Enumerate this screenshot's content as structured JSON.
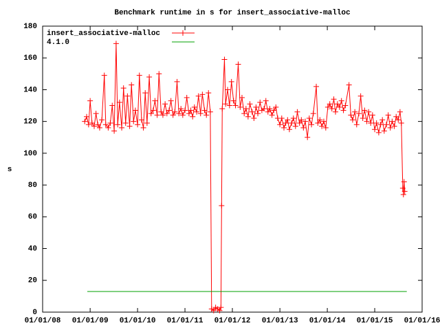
{
  "chart_data": {
    "type": "line",
    "title": "Benchmark runtime in s for insert_associative-malloc",
    "y_label": "s",
    "xlim": [
      "2008-01-01",
      "2016-01-01"
    ],
    "xticks": [
      {
        "value": "2008-01-01",
        "label": "01/01/08"
      },
      {
        "value": "2009-01-01",
        "label": "01/01/09"
      },
      {
        "value": "2010-01-01",
        "label": "01/01/10"
      },
      {
        "value": "2011-01-01",
        "label": "01/01/11"
      },
      {
        "value": "2012-01-01",
        "label": "01/01/12"
      },
      {
        "value": "2013-01-01",
        "label": "01/01/13"
      },
      {
        "value": "2014-01-01",
        "label": "01/01/14"
      },
      {
        "value": "2015-01-01",
        "label": "01/01/15"
      },
      {
        "value": "2016-01-01",
        "label": "01/01/16"
      }
    ],
    "ylim": [
      0,
      180
    ],
    "yticks": [
      0,
      20,
      40,
      60,
      80,
      100,
      120,
      140,
      160,
      180
    ],
    "legend": "top-left",
    "series": [
      {
        "name": "insert_associative-malloc",
        "color": "#ff0000",
        "style": "linespoints",
        "x": [
          "2008-11-20",
          "2008-12-05",
          "2008-12-20",
          "2009-01-01",
          "2009-01-15",
          "2009-02-01",
          "2009-02-15",
          "2009-03-01",
          "2009-03-15",
          "2009-04-01",
          "2009-04-20",
          "2009-05-01",
          "2009-05-20",
          "2009-06-05",
          "2009-06-20",
          "2009-07-05",
          "2009-07-20",
          "2009-08-01",
          "2009-08-15",
          "2009-09-01",
          "2009-09-15",
          "2009-10-01",
          "2009-10-15",
          "2009-11-01",
          "2009-11-15",
          "2009-12-01",
          "2009-12-15",
          "2010-01-01",
          "2010-01-15",
          "2010-02-01",
          "2010-02-15",
          "2010-03-01",
          "2010-03-15",
          "2010-04-01",
          "2010-04-15",
          "2010-05-01",
          "2010-05-15",
          "2010-06-01",
          "2010-06-15",
          "2010-07-01",
          "2010-07-15",
          "2010-08-01",
          "2010-08-15",
          "2010-09-01",
          "2010-09-15",
          "2010-10-01",
          "2010-10-15",
          "2010-11-01",
          "2010-11-15",
          "2010-12-01",
          "2010-12-15",
          "2011-01-01",
          "2011-01-15",
          "2011-02-01",
          "2011-02-15",
          "2011-03-01",
          "2011-03-15",
          "2011-04-01",
          "2011-04-15",
          "2011-05-01",
          "2011-05-15",
          "2011-06-01",
          "2011-06-15",
          "2011-07-01",
          "2011-07-15",
          "2011-07-25",
          "2011-08-10",
          "2011-08-25",
          "2011-09-10",
          "2011-09-25",
          "2011-10-05",
          "2011-10-10",
          "2011-10-15",
          "2011-11-01",
          "2011-11-10",
          "2011-11-25",
          "2011-12-10",
          "2011-12-25",
          "2012-01-10",
          "2012-01-25",
          "2012-02-15",
          "2012-03-01",
          "2012-03-15",
          "2012-04-01",
          "2012-04-15",
          "2012-05-01",
          "2012-05-15",
          "2012-06-01",
          "2012-06-15",
          "2012-07-01",
          "2012-07-15",
          "2012-08-01",
          "2012-08-15",
          "2012-09-01",
          "2012-09-15",
          "2012-10-01",
          "2012-10-15",
          "2012-11-01",
          "2012-11-15",
          "2012-12-01",
          "2012-12-15",
          "2013-01-01",
          "2013-01-15",
          "2013-02-01",
          "2013-02-15",
          "2013-03-01",
          "2013-03-15",
          "2013-04-01",
          "2013-04-15",
          "2013-05-01",
          "2013-05-15",
          "2013-06-01",
          "2013-06-15",
          "2013-07-01",
          "2013-07-15",
          "2013-08-01",
          "2013-08-15",
          "2013-09-01",
          "2013-09-15",
          "2013-10-08",
          "2013-10-20",
          "2013-11-05",
          "2013-11-20",
          "2013-12-05",
          "2013-12-20",
          "2014-01-05",
          "2014-01-20",
          "2014-02-05",
          "2014-02-20",
          "2014-03-05",
          "2014-03-20",
          "2014-04-05",
          "2014-04-20",
          "2014-05-05",
          "2014-05-20",
          "2014-06-17",
          "2014-07-01",
          "2014-07-15",
          "2014-08-01",
          "2014-08-15",
          "2014-09-01",
          "2014-09-15",
          "2014-10-01",
          "2014-10-15",
          "2014-11-01",
          "2014-11-15",
          "2014-12-01",
          "2014-12-15",
          "2015-01-01",
          "2015-01-15",
          "2015-02-01",
          "2015-02-15",
          "2015-03-01",
          "2015-03-15",
          "2015-04-01",
          "2015-04-15",
          "2015-05-01",
          "2015-05-15",
          "2015-06-01",
          "2015-06-15",
          "2015-07-01",
          "2015-07-15",
          "2015-07-25",
          "2015-08-05",
          "2015-08-10",
          "2015-08-15",
          "2015-08-20"
        ],
        "values": [
          120,
          123,
          118,
          133,
          119,
          117,
          125,
          118,
          116,
          121,
          149,
          118,
          116,
          119,
          130,
          114,
          169,
          118,
          132,
          116,
          141,
          119,
          136,
          117,
          143,
          120,
          127,
          118,
          149,
          121,
          116,
          138,
          119,
          148,
          125,
          127,
          133,
          124,
          150,
          126,
          124,
          131,
          125,
          127,
          133,
          124,
          126,
          145,
          125,
          128,
          124,
          127,
          135,
          125,
          127,
          123,
          129,
          126,
          136,
          125,
          137,
          127,
          124,
          138,
          126,
          2,
          1,
          3,
          2,
          1,
          3,
          67,
          128,
          159,
          131,
          140,
          130,
          145,
          133,
          130,
          156,
          129,
          135,
          125,
          128,
          123,
          131,
          126,
          122,
          129,
          125,
          132,
          127,
          128,
          133,
          126,
          128,
          124,
          127,
          129,
          122,
          118,
          122,
          116,
          119,
          121,
          115,
          119,
          122,
          117,
          126,
          119,
          121,
          116,
          120,
          110,
          122,
          118,
          125,
          142,
          119,
          121,
          117,
          120,
          116,
          129,
          131,
          128,
          134,
          126,
          131,
          129,
          133,
          127,
          130,
          143,
          124,
          121,
          126,
          118,
          125,
          136,
          122,
          127,
          120,
          126,
          119,
          124,
          115,
          119,
          113,
          118,
          121,
          114,
          118,
          124,
          116,
          120,
          117,
          123,
          121,
          126,
          119,
          78,
          74,
          82,
          76
        ]
      },
      {
        "name": "4.1.0",
        "color": "#00a000",
        "style": "lines",
        "x": [
          "2008-12-10",
          "2015-09-05"
        ],
        "values": [
          13,
          13
        ]
      }
    ]
  }
}
